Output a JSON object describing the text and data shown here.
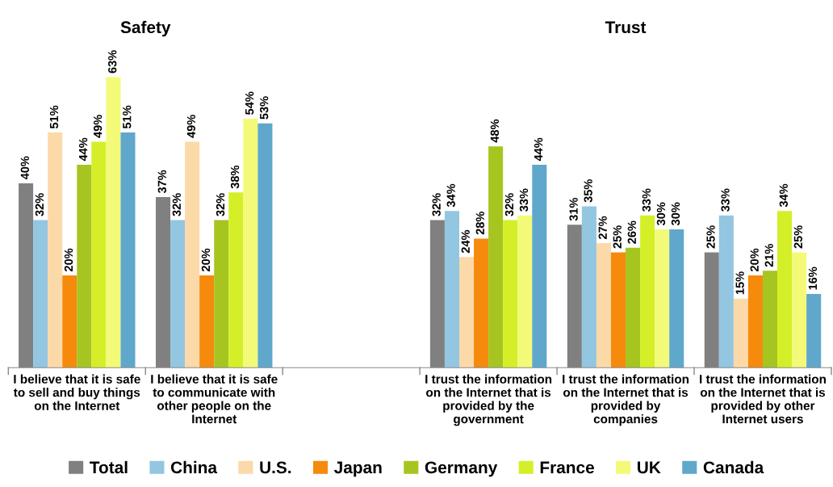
{
  "chart_data": {
    "type": "bar",
    "categories": [
      "I believe that it is safe\nto sell and buy things\non the Internet",
      "I believe that it is safe\nto communicate with\nother people on the\nInternet",
      null,
      "I trust the information\non the Internet that is\nprovided by the\ngovernment",
      "I trust the information\non the Internet that is\nprovided by\ncompanies",
      "I trust the information\non the Internet that is\nprovided by other\nInternet users"
    ],
    "series": [
      {
        "name": "Total",
        "color": "#808080",
        "values": [
          40,
          37,
          null,
          32,
          31,
          25
        ],
        "value_labels": [
          "40%",
          "37%",
          null,
          "32%",
          "31%",
          "25%"
        ]
      },
      {
        "name": "China",
        "color": "#93c6e0",
        "values": [
          32,
          32,
          null,
          34,
          35,
          33
        ],
        "value_labels": [
          "32%",
          "32%",
          null,
          "34%",
          "35%",
          "33%"
        ]
      },
      {
        "name": "U.S.",
        "color": "#fcd9a8",
        "values": [
          51,
          49,
          null,
          24,
          27,
          15
        ],
        "value_labels": [
          "51%",
          "49%",
          null,
          "24%",
          "27%",
          "15%"
        ]
      },
      {
        "name": "Japan",
        "color": "#f58a0c",
        "values": [
          20,
          20,
          null,
          28,
          25,
          20
        ],
        "value_labels": [
          "20%",
          "20%",
          null,
          "28%",
          "25%",
          "20%"
        ]
      },
      {
        "name": "Germany",
        "color": "#a6c520",
        "values": [
          44,
          32,
          null,
          48,
          26,
          21
        ],
        "value_labels": [
          "44%",
          "32%",
          null,
          "48%",
          "26%",
          "21%"
        ]
      },
      {
        "name": "France",
        "color": "#d4ef28",
        "values": [
          49,
          38,
          null,
          32,
          33,
          34
        ],
        "value_labels": [
          "49%",
          "38%",
          null,
          "32%",
          "33%",
          "34%"
        ]
      },
      {
        "name": "UK",
        "color": "#f3fa78",
        "values": [
          63,
          54,
          null,
          33,
          30,
          25
        ],
        "value_labels": [
          "63%",
          "54%",
          null,
          "33%",
          "30%",
          "25%"
        ]
      },
      {
        "name": "Canada",
        "color": "#5fa8cc",
        "values": [
          51,
          53,
          null,
          44,
          30,
          16
        ],
        "value_labels": [
          "51%",
          "53%",
          null,
          "44%",
          "30%",
          "16%"
        ]
      }
    ],
    "annotations": [
      "Safety",
      "Trust"
    ],
    "legend": "bottom",
    "grid": false
  }
}
